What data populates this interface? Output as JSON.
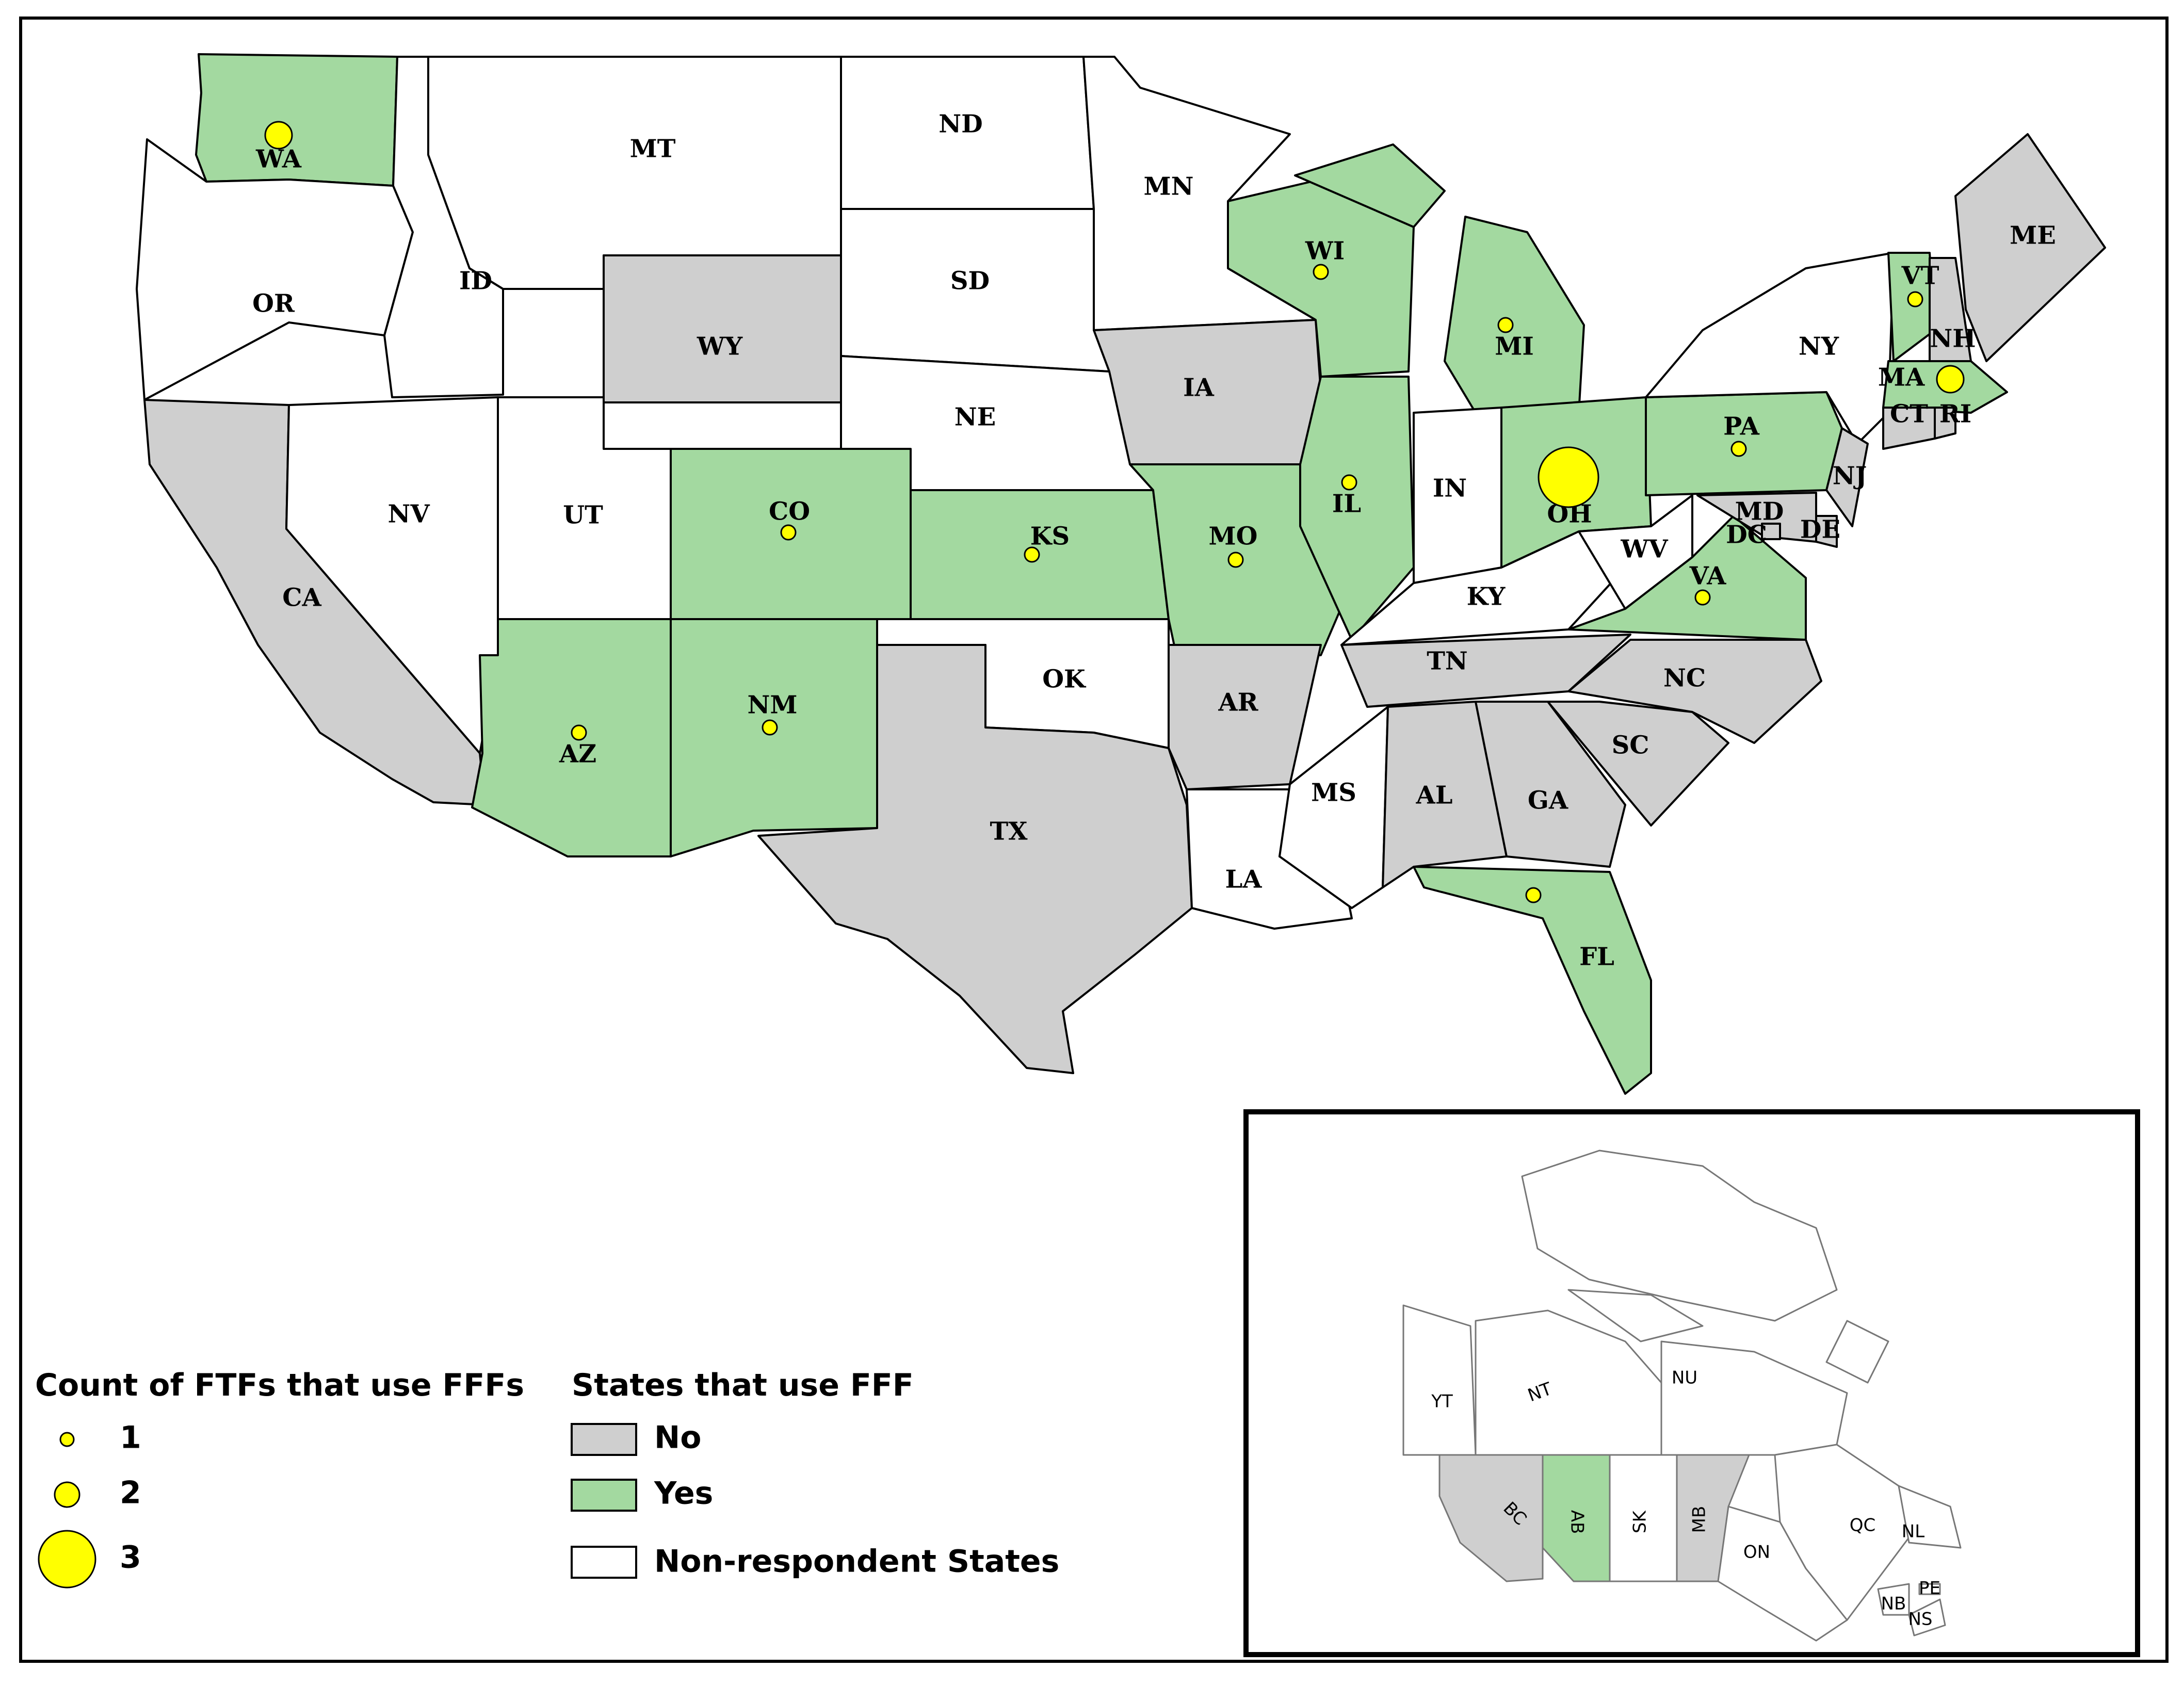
{
  "colors": {
    "yes": "#a3d9a0",
    "no": "#cfcfcf",
    "nonrespondent": "#ffffff",
    "dot": "#ffff00"
  },
  "states": [
    {
      "abbr": "WA",
      "status": "yes",
      "ftf_count": 2
    },
    {
      "abbr": "OR",
      "status": "nonrespondent"
    },
    {
      "abbr": "CA",
      "status": "no"
    },
    {
      "abbr": "ID",
      "status": "nonrespondent"
    },
    {
      "abbr": "NV",
      "status": "nonrespondent"
    },
    {
      "abbr": "MT",
      "status": "nonrespondent"
    },
    {
      "abbr": "WY",
      "status": "no"
    },
    {
      "abbr": "UT",
      "status": "nonrespondent"
    },
    {
      "abbr": "AZ",
      "status": "yes",
      "ftf_count": 1
    },
    {
      "abbr": "CO",
      "status": "yes",
      "ftf_count": 1
    },
    {
      "abbr": "NM",
      "status": "yes",
      "ftf_count": 1
    },
    {
      "abbr": "ND",
      "status": "nonrespondent"
    },
    {
      "abbr": "SD",
      "status": "nonrespondent"
    },
    {
      "abbr": "NE",
      "status": "nonrespondent"
    },
    {
      "abbr": "KS",
      "status": "yes",
      "ftf_count": 1
    },
    {
      "abbr": "OK",
      "status": "nonrespondent"
    },
    {
      "abbr": "TX",
      "status": "no"
    },
    {
      "abbr": "MN",
      "status": "nonrespondent"
    },
    {
      "abbr": "IA",
      "status": "no"
    },
    {
      "abbr": "MO",
      "status": "yes",
      "ftf_count": 1
    },
    {
      "abbr": "AR",
      "status": "no"
    },
    {
      "abbr": "LA",
      "status": "nonrespondent"
    },
    {
      "abbr": "WI",
      "status": "yes",
      "ftf_count": 1
    },
    {
      "abbr": "IL",
      "status": "yes",
      "ftf_count": 1
    },
    {
      "abbr": "MS",
      "status": "nonrespondent"
    },
    {
      "abbr": "MI",
      "status": "yes",
      "ftf_count": 1
    },
    {
      "abbr": "IN",
      "status": "nonrespondent"
    },
    {
      "abbr": "KY",
      "status": "nonrespondent"
    },
    {
      "abbr": "TN",
      "status": "no"
    },
    {
      "abbr": "AL",
      "status": "no"
    },
    {
      "abbr": "GA",
      "status": "no"
    },
    {
      "abbr": "FL",
      "status": "yes",
      "ftf_count": 1
    },
    {
      "abbr": "OH",
      "status": "yes",
      "ftf_count": 3
    },
    {
      "abbr": "WV",
      "status": "nonrespondent"
    },
    {
      "abbr": "VA",
      "status": "yes",
      "ftf_count": 1
    },
    {
      "abbr": "NC",
      "status": "no"
    },
    {
      "abbr": "SC",
      "status": "no"
    },
    {
      "abbr": "PA",
      "status": "yes",
      "ftf_count": 1
    },
    {
      "abbr": "NY",
      "status": "nonrespondent"
    },
    {
      "abbr": "VT",
      "status": "yes",
      "ftf_count": 1
    },
    {
      "abbr": "NH",
      "status": "no"
    },
    {
      "abbr": "ME",
      "status": "no"
    },
    {
      "abbr": "MA",
      "status": "yes",
      "ftf_count": 2
    },
    {
      "abbr": "CT",
      "status": "no"
    },
    {
      "abbr": "RI",
      "status": "no"
    },
    {
      "abbr": "NJ",
      "status": "no"
    },
    {
      "abbr": "DE",
      "status": "no"
    },
    {
      "abbr": "MD",
      "status": "no"
    },
    {
      "abbr": "DC",
      "status": "no"
    }
  ],
  "provinces": [
    {
      "abbr": "YT",
      "status": "nonrespondent"
    },
    {
      "abbr": "NT",
      "status": "nonrespondent"
    },
    {
      "abbr": "NU",
      "status": "nonrespondent"
    },
    {
      "abbr": "BC",
      "status": "no"
    },
    {
      "abbr": "AB",
      "status": "yes"
    },
    {
      "abbr": "SK",
      "status": "nonrespondent"
    },
    {
      "abbr": "MB",
      "status": "no"
    },
    {
      "abbr": "ON",
      "status": "nonrespondent"
    },
    {
      "abbr": "QC",
      "status": "nonrespondent"
    },
    {
      "abbr": "NL",
      "status": "nonrespondent"
    },
    {
      "abbr": "NB",
      "status": "nonrespondent"
    },
    {
      "abbr": "NS",
      "status": "nonrespondent"
    },
    {
      "abbr": "PE",
      "status": "nonrespondent"
    }
  ],
  "legend_count": {
    "title": "Count of FTFs that use FFFs",
    "items": [
      "1",
      "2",
      "3"
    ]
  },
  "legend_states": {
    "title": "States that use FFF",
    "items": [
      "No",
      "Yes",
      "Non-respondent States"
    ]
  }
}
